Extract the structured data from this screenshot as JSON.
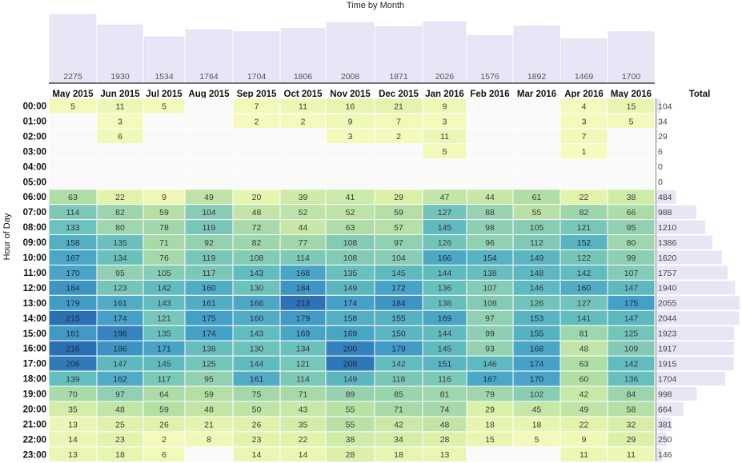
{
  "chart_data": {
    "type": "heatmap",
    "title": "Time by Month",
    "ylabel": "Hour of Day",
    "total_label": "Total",
    "months": [
      "May 2015",
      "Jun 2015",
      "Jul 2015",
      "Aug 2015",
      "Sep 2015",
      "Oct 2015",
      "Nov 2015",
      "Dec 2015",
      "Jan 2016",
      "Feb 2016",
      "Mar 2016",
      "Apr 2016",
      "May 2016"
    ],
    "month_totals": [
      2275,
      1930,
      1534,
      1764,
      1704,
      1806,
      2008,
      1871,
      2026,
      1576,
      1892,
      1469,
      1700
    ],
    "hours": [
      "00:00",
      "01:00",
      "02:00",
      "03:00",
      "04:00",
      "05:00",
      "06:00",
      "07:00",
      "08:00",
      "09:00",
      "10:00",
      "11:00",
      "12:00",
      "13:00",
      "14:00",
      "15:00",
      "16:00",
      "17:00",
      "18:00",
      "19:00",
      "20:00",
      "21:00",
      "22:00",
      "23:00"
    ],
    "hour_totals": [
      104,
      34,
      29,
      6,
      0,
      0,
      484,
      988,
      1210,
      1386,
      1620,
      1757,
      1940,
      2055,
      2044,
      1923,
      1917,
      1915,
      1704,
      998,
      664,
      381,
      250,
      146
    ],
    "values": [
      [
        5,
        11,
        5,
        null,
        7,
        11,
        16,
        21,
        9,
        null,
        null,
        4,
        15
      ],
      [
        null,
        3,
        null,
        null,
        2,
        2,
        9,
        7,
        3,
        null,
        null,
        3,
        5
      ],
      [
        null,
        6,
        null,
        null,
        null,
        null,
        3,
        2,
        11,
        null,
        null,
        7,
        null
      ],
      [
        null,
        null,
        null,
        null,
        null,
        null,
        null,
        null,
        5,
        null,
        null,
        1,
        null
      ],
      [
        null,
        null,
        null,
        null,
        null,
        null,
        null,
        null,
        null,
        null,
        null,
        null,
        null
      ],
      [
        null,
        null,
        null,
        null,
        null,
        null,
        null,
        null,
        null,
        null,
        null,
        null,
        null
      ],
      [
        63,
        22,
        9,
        49,
        20,
        39,
        41,
        29,
        47,
        44,
        61,
        22,
        38
      ],
      [
        114,
        82,
        59,
        104,
        48,
        52,
        52,
        59,
        127,
        88,
        55,
        82,
        66
      ],
      [
        133,
        80,
        78,
        119,
        72,
        44,
        63,
        57,
        145,
        98,
        105,
        121,
        95
      ],
      [
        158,
        135,
        71,
        92,
        82,
        77,
        108,
        97,
        126,
        96,
        112,
        152,
        80
      ],
      [
        167,
        134,
        76,
        119,
        108,
        114,
        108,
        104,
        166,
        154,
        149,
        122,
        99
      ],
      [
        170,
        95,
        105,
        117,
        143,
        168,
        135,
        145,
        144,
        138,
        148,
        142,
        107
      ],
      [
        184,
        123,
        142,
        160,
        130,
        184,
        149,
        172,
        136,
        107,
        146,
        160,
        147
      ],
      [
        179,
        161,
        143,
        161,
        166,
        213,
        174,
        184,
        138,
        108,
        126,
        127,
        175
      ],
      [
        215,
        174,
        121,
        175,
        160,
        179,
        158,
        155,
        169,
        97,
        153,
        141,
        147
      ],
      [
        181,
        198,
        135,
        174,
        143,
        169,
        169,
        150,
        144,
        99,
        155,
        81,
        125
      ],
      [
        216,
        186,
        171,
        138,
        130,
        134,
        200,
        179,
        145,
        93,
        168,
        48,
        109
      ],
      [
        206,
        147,
        145,
        125,
        144,
        121,
        209,
        142,
        151,
        146,
        174,
        63,
        142
      ],
      [
        139,
        162,
        117,
        95,
        161,
        114,
        149,
        118,
        116,
        167,
        170,
        60,
        136
      ],
      [
        70,
        97,
        64,
        59,
        75,
        71,
        89,
        85,
        81,
        79,
        102,
        42,
        84
      ],
      [
        35,
        48,
        59,
        48,
        50,
        43,
        55,
        71,
        74,
        29,
        45,
        49,
        58
      ],
      [
        13,
        25,
        26,
        21,
        26,
        35,
        55,
        42,
        48,
        18,
        18,
        22,
        32
      ],
      [
        14,
        23,
        2,
        8,
        23,
        22,
        38,
        34,
        28,
        15,
        5,
        9,
        29
      ],
      [
        13,
        18,
        6,
        null,
        14,
        14,
        28,
        18,
        13,
        null,
        null,
        11,
        11
      ]
    ]
  },
  "colors": {
    "bar_fill": "#e6e6f7",
    "bar_stroke": "#d4d4ee",
    "baseline": "#222222",
    "empty_cell": "#fafafa"
  }
}
